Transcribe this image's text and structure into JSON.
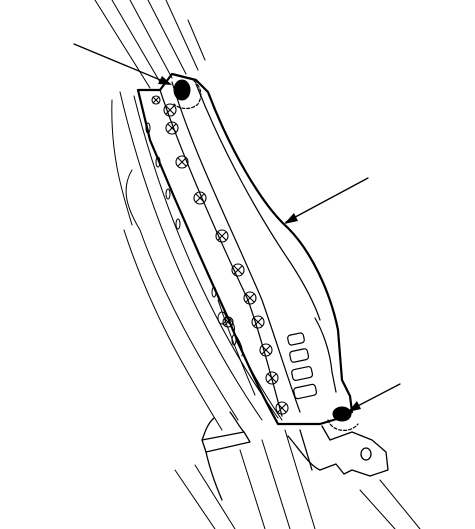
{
  "figure": {
    "kind": "technical-line-illustration",
    "subject": "pillar-trim-panel-with-fasteners",
    "stroke_color": "#000000",
    "background_color": "#ffffff",
    "leader_lines": [
      {
        "target": "upper-clip"
      },
      {
        "target": "trim-panel-edge"
      },
      {
        "target": "lower-clip"
      }
    ],
    "fastener_markers": {
      "count": 13,
      "symbol": "circle-with-x"
    },
    "callout_labels": []
  }
}
